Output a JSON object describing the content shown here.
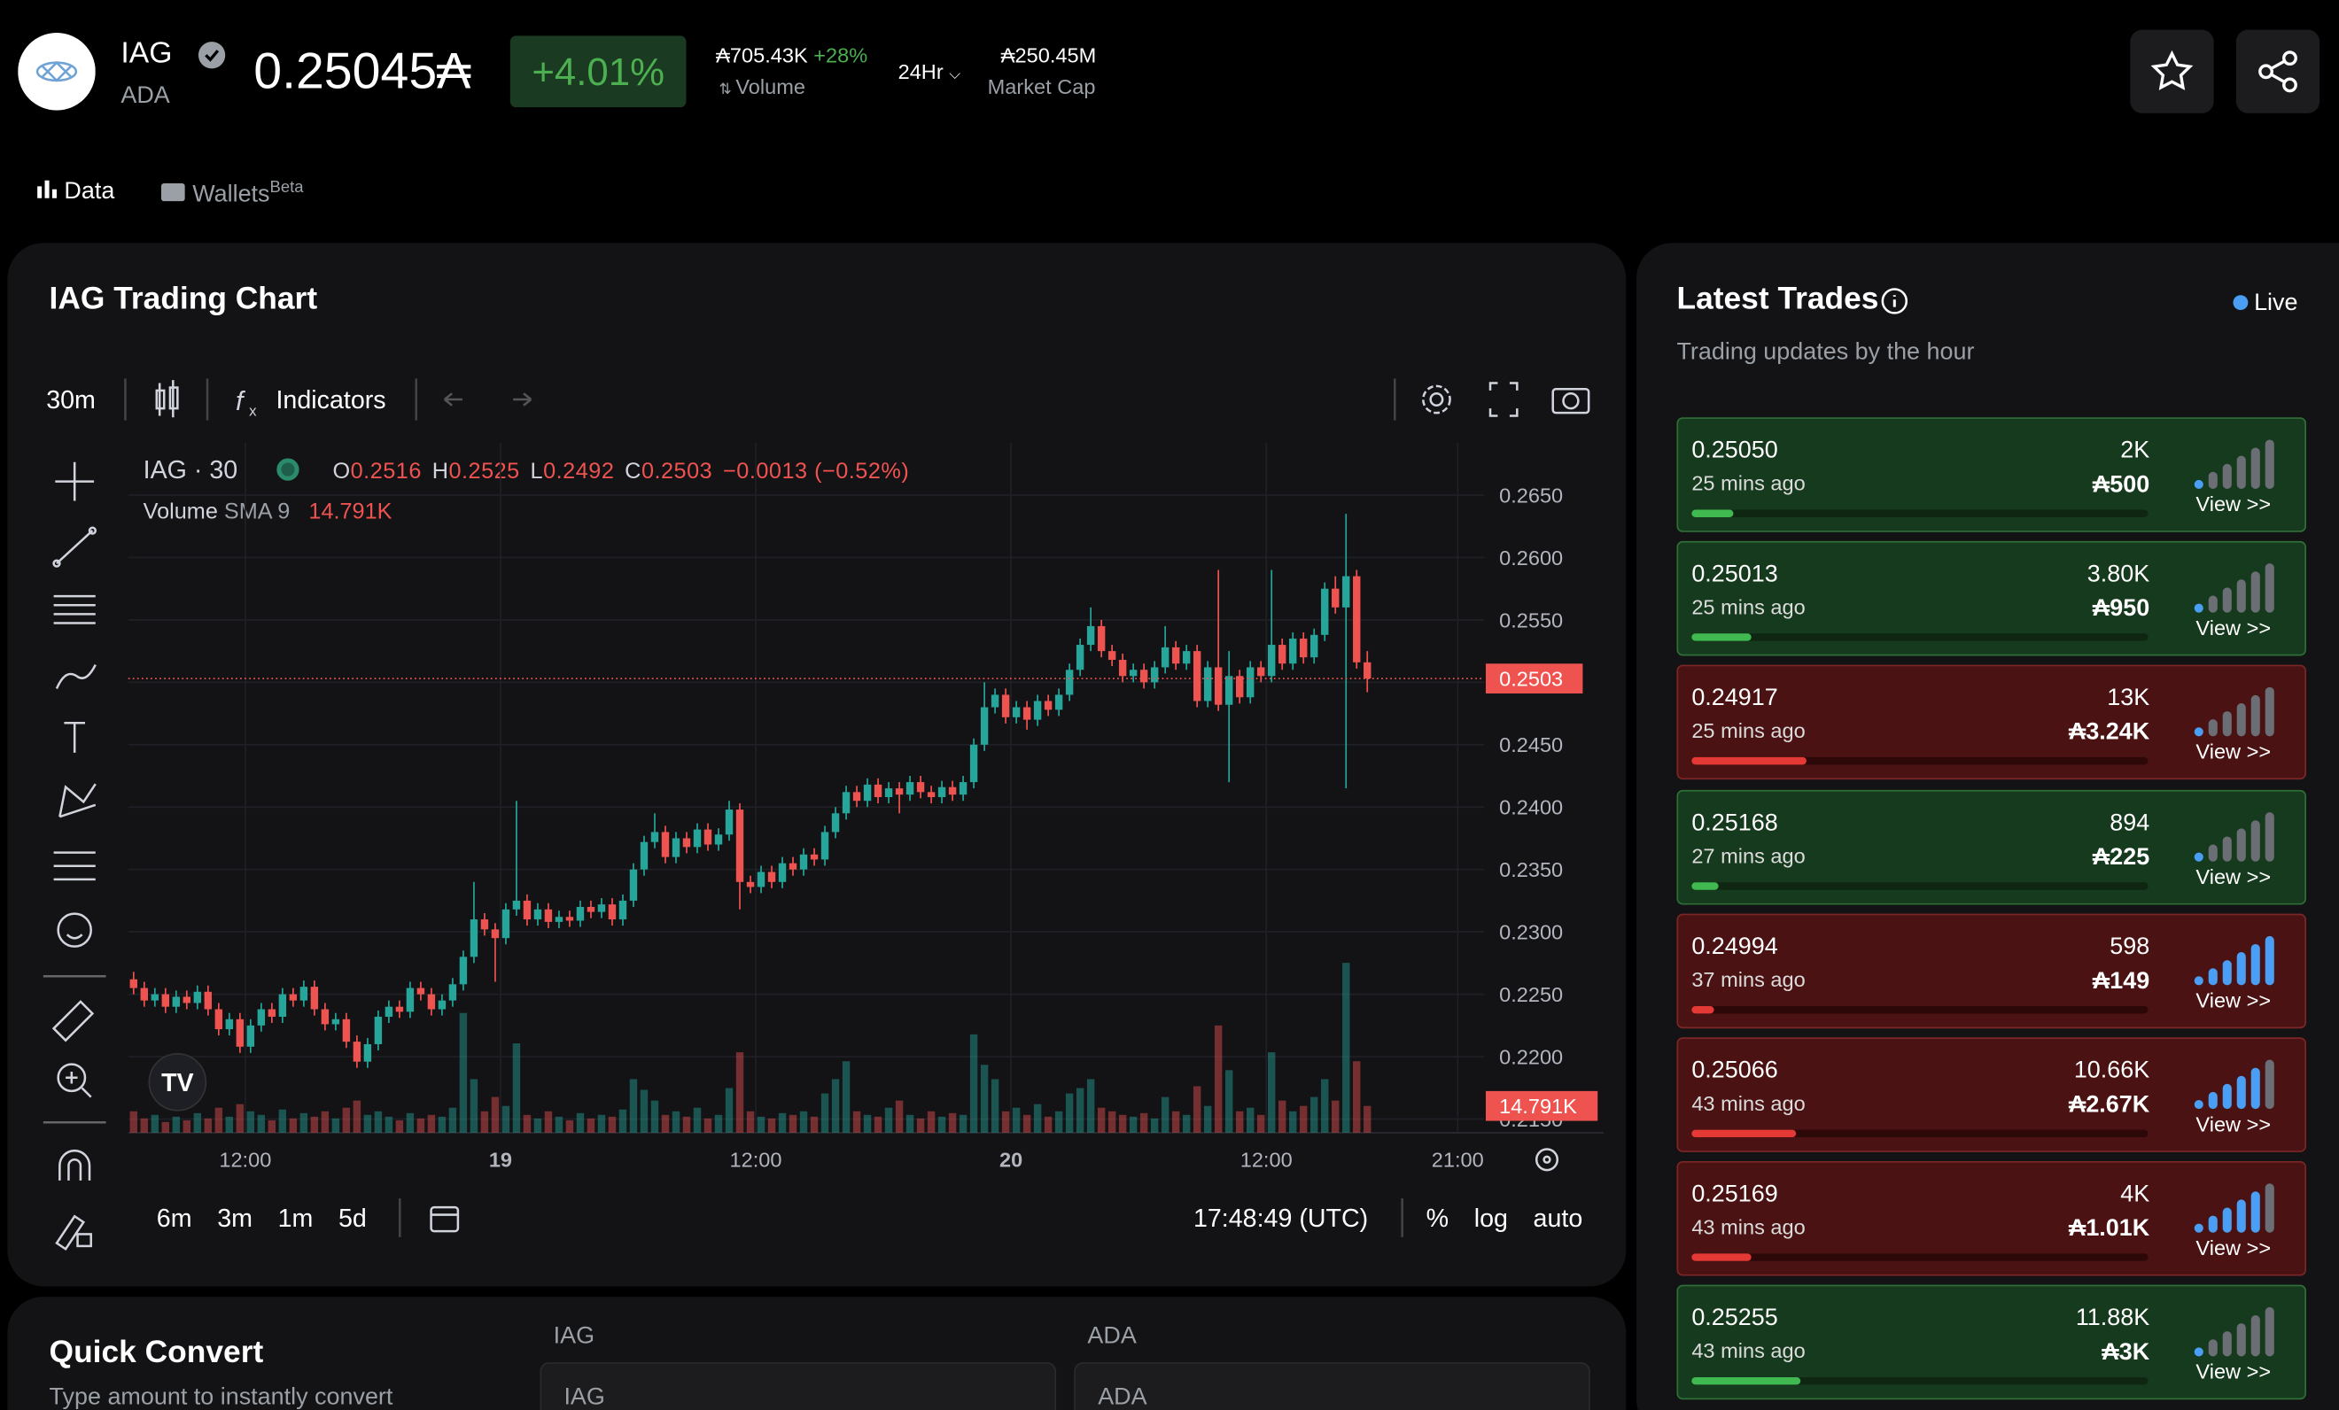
{
  "header": {
    "symbol": "IAG",
    "quote": "ADA",
    "price": "0.25045₳",
    "change": "+4.01%",
    "volume": "₳705.43K",
    "volume_change": "+28%",
    "volume_label": "Volume",
    "period": "24Hr",
    "market_cap": "₳250.45M",
    "market_cap_label": "Market Cap"
  },
  "tabs": {
    "data": "Data",
    "wallets": "Wallets",
    "beta": "Beta"
  },
  "chart_panel": {
    "title": "IAG Trading Chart",
    "interval": "30m",
    "indicators": "Indicators",
    "symbol": "IAG · 30",
    "ohlc_letters": [
      "O",
      "H",
      "L",
      "C"
    ],
    "change": "−0.0013 (−0.52%)",
    "volume_name": "Volume",
    "volume_sma": "SMA 9",
    "volume_sma_value": "14.791K",
    "ranges": [
      "6m",
      "3m",
      "1m",
      "5d"
    ],
    "clock": "17:48:49 (UTC)",
    "options": [
      "%",
      "log",
      "auto"
    ]
  },
  "chart_data": {
    "type": "candlestick",
    "up_color": "#26a69a",
    "down_color": "#ef5350",
    "grid": true,
    "ylim": [
      0.2139,
      0.2692
    ],
    "yticks": [
      {
        "value": 0.215,
        "label": "0.2150"
      },
      {
        "value": 0.22,
        "label": "0.2200"
      },
      {
        "value": 0.225,
        "label": "0.2250"
      },
      {
        "value": 0.23,
        "label": "0.2300"
      },
      {
        "value": 0.235,
        "label": "0.2350"
      },
      {
        "value": 0.24,
        "label": "0.2400"
      },
      {
        "value": 0.245,
        "label": "0.2450"
      },
      {
        "value": 0.25,
        "label": "0.2500"
      },
      {
        "value": 0.255,
        "label": "0.2550"
      },
      {
        "value": 0.26,
        "label": "0.2600"
      },
      {
        "value": 0.265,
        "label": "0.2650"
      }
    ],
    "xlim": [
      0,
      127.5
    ],
    "xticks": [
      {
        "value": 11,
        "label": "12:00"
      },
      {
        "value": 35,
        "label": "19"
      },
      {
        "value": 59,
        "label": "12:00"
      },
      {
        "value": 83,
        "label": "20"
      },
      {
        "value": 107,
        "label": "12:00"
      },
      {
        "value": 125,
        "label": "21:00"
      }
    ],
    "volume_ylim": [
      0,
      100
    ],
    "candles": [
      [
        0.2262,
        0.2268,
        0.225,
        0.2255
      ],
      [
        0.2255,
        0.226,
        0.224,
        0.2245
      ],
      [
        0.2245,
        0.2255,
        0.224,
        0.225
      ],
      [
        0.225,
        0.2255,
        0.2235,
        0.224
      ],
      [
        0.224,
        0.2253,
        0.2235,
        0.2248
      ],
      [
        0.2248,
        0.2253,
        0.2238,
        0.2243
      ],
      [
        0.2243,
        0.2257,
        0.2238,
        0.2252
      ],
      [
        0.2252,
        0.2257,
        0.2233,
        0.2238
      ],
      [
        0.2238,
        0.2243,
        0.2217,
        0.2222
      ],
      [
        0.2222,
        0.2235,
        0.2217,
        0.223
      ],
      [
        0.223,
        0.2235,
        0.2203,
        0.2208
      ],
      [
        0.2208,
        0.223,
        0.2203,
        0.2225
      ],
      [
        0.2225,
        0.2243,
        0.222,
        0.2238
      ],
      [
        0.2238,
        0.2243,
        0.2227,
        0.2232
      ],
      [
        0.2232,
        0.2255,
        0.2227,
        0.225
      ],
      [
        0.225,
        0.2255,
        0.224,
        0.2245
      ],
      [
        0.2245,
        0.2261,
        0.224,
        0.2256
      ],
      [
        0.2256,
        0.2261,
        0.2233,
        0.2238
      ],
      [
        0.2238,
        0.2243,
        0.2221,
        0.2226
      ],
      [
        0.2226,
        0.2235,
        0.2221,
        0.223
      ],
      [
        0.223,
        0.2235,
        0.2207,
        0.2212
      ],
      [
        0.2212,
        0.2217,
        0.2191,
        0.2196
      ],
      [
        0.2196,
        0.2215,
        0.2191,
        0.221
      ],
      [
        0.221,
        0.2237,
        0.2205,
        0.2232
      ],
      [
        0.2232,
        0.2245,
        0.2227,
        0.224
      ],
      [
        0.224,
        0.2245,
        0.2231,
        0.2236
      ],
      [
        0.2236,
        0.226,
        0.2231,
        0.2255
      ],
      [
        0.2255,
        0.226,
        0.2245,
        0.225
      ],
      [
        0.225,
        0.2255,
        0.2233,
        0.2238
      ],
      [
        0.2238,
        0.225,
        0.2233,
        0.2245
      ],
      [
        0.2245,
        0.2263,
        0.224,
        0.2258
      ],
      [
        0.2258,
        0.2285,
        0.2253,
        0.228
      ],
      [
        0.228,
        0.234,
        0.2275,
        0.231
      ],
      [
        0.231,
        0.2315,
        0.2297,
        0.2302
      ],
      [
        0.2302,
        0.2307,
        0.226,
        0.2295
      ],
      [
        0.2295,
        0.2323,
        0.229,
        0.2318
      ],
      [
        0.2318,
        0.2405,
        0.2313,
        0.2325
      ],
      [
        0.2325,
        0.233,
        0.2305,
        0.231
      ],
      [
        0.231,
        0.2323,
        0.2305,
        0.2318
      ],
      [
        0.2318,
        0.2323,
        0.2303,
        0.2308
      ],
      [
        0.2308,
        0.2317,
        0.2303,
        0.2312
      ],
      [
        0.2312,
        0.2317,
        0.2304,
        0.2309
      ],
      [
        0.2309,
        0.2325,
        0.2304,
        0.232
      ],
      [
        0.232,
        0.2325,
        0.2311,
        0.2316
      ],
      [
        0.2316,
        0.2327,
        0.2311,
        0.2322
      ],
      [
        0.2322,
        0.2327,
        0.2305,
        0.231
      ],
      [
        0.231,
        0.233,
        0.2305,
        0.2325
      ],
      [
        0.2325,
        0.2355,
        0.232,
        0.235
      ],
      [
        0.235,
        0.2377,
        0.2345,
        0.2372
      ],
      [
        0.2372,
        0.2395,
        0.2367,
        0.238
      ],
      [
        0.238,
        0.2385,
        0.2355,
        0.236
      ],
      [
        0.236,
        0.238,
        0.2355,
        0.2375
      ],
      [
        0.2375,
        0.238,
        0.2363,
        0.2368
      ],
      [
        0.2368,
        0.2387,
        0.2363,
        0.2382
      ],
      [
        0.2382,
        0.2387,
        0.2365,
        0.237
      ],
      [
        0.237,
        0.2383,
        0.2365,
        0.2378
      ],
      [
        0.2378,
        0.2405,
        0.2373,
        0.2398
      ],
      [
        0.2398,
        0.2403,
        0.2318,
        0.234
      ],
      [
        0.234,
        0.2345,
        0.2331,
        0.2336
      ],
      [
        0.2336,
        0.2353,
        0.2331,
        0.2348
      ],
      [
        0.2348,
        0.2353,
        0.2335,
        0.234
      ],
      [
        0.234,
        0.236,
        0.2335,
        0.2355
      ],
      [
        0.2355,
        0.236,
        0.2345,
        0.235
      ],
      [
        0.235,
        0.2367,
        0.2345,
        0.2362
      ],
      [
        0.2362,
        0.2367,
        0.2353,
        0.2358
      ],
      [
        0.2358,
        0.2385,
        0.2353,
        0.238
      ],
      [
        0.238,
        0.24,
        0.2375,
        0.2395
      ],
      [
        0.2395,
        0.2417,
        0.239,
        0.2412
      ],
      [
        0.2412,
        0.2417,
        0.24,
        0.2405
      ],
      [
        0.2405,
        0.2423,
        0.24,
        0.2418
      ],
      [
        0.2418,
        0.2423,
        0.2403,
        0.2408
      ],
      [
        0.2408,
        0.242,
        0.2403,
        0.2415
      ],
      [
        0.2415,
        0.242,
        0.2395,
        0.241
      ],
      [
        0.241,
        0.2425,
        0.2405,
        0.242
      ],
      [
        0.242,
        0.2425,
        0.2407,
        0.2412
      ],
      [
        0.2412,
        0.2417,
        0.2403,
        0.2408
      ],
      [
        0.2408,
        0.2421,
        0.2403,
        0.2416
      ],
      [
        0.2416,
        0.2421,
        0.2405,
        0.241
      ],
      [
        0.241,
        0.2425,
        0.2405,
        0.242
      ],
      [
        0.242,
        0.2455,
        0.2415,
        0.245
      ],
      [
        0.245,
        0.25,
        0.2445,
        0.248
      ],
      [
        0.248,
        0.2495,
        0.2475,
        0.249
      ],
      [
        0.249,
        0.2495,
        0.2467,
        0.2472
      ],
      [
        0.2472,
        0.2485,
        0.2467,
        0.248
      ],
      [
        0.248,
        0.2485,
        0.2462,
        0.247
      ],
      [
        0.247,
        0.249,
        0.2465,
        0.2485
      ],
      [
        0.2485,
        0.249,
        0.2473,
        0.2478
      ],
      [
        0.2478,
        0.2495,
        0.2473,
        0.249
      ],
      [
        0.249,
        0.2515,
        0.2485,
        0.251
      ],
      [
        0.251,
        0.2535,
        0.2505,
        0.253
      ],
      [
        0.253,
        0.256,
        0.2525,
        0.2545
      ],
      [
        0.2545,
        0.255,
        0.252,
        0.2525
      ],
      [
        0.2525,
        0.253,
        0.2513,
        0.2518
      ],
      [
        0.2518,
        0.2523,
        0.25,
        0.2505
      ],
      [
        0.2505,
        0.2515,
        0.25,
        0.251
      ],
      [
        0.251,
        0.2515,
        0.2495,
        0.25
      ],
      [
        0.25,
        0.2517,
        0.2495,
        0.2512
      ],
      [
        0.2512,
        0.2545,
        0.2507,
        0.2528
      ],
      [
        0.2528,
        0.2533,
        0.251,
        0.2515
      ],
      [
        0.2515,
        0.253,
        0.251,
        0.2525
      ],
      [
        0.2525,
        0.253,
        0.248,
        0.2485
      ],
      [
        0.2485,
        0.2517,
        0.248,
        0.2512
      ],
      [
        0.2512,
        0.259,
        0.2477,
        0.2482
      ],
      [
        0.2482,
        0.2525,
        0.242,
        0.2505
      ],
      [
        0.2505,
        0.251,
        0.2483,
        0.2488
      ],
      [
        0.2488,
        0.2517,
        0.2483,
        0.2512
      ],
      [
        0.2512,
        0.2517,
        0.25,
        0.2505
      ],
      [
        0.2505,
        0.259,
        0.25,
        0.253
      ],
      [
        0.253,
        0.2535,
        0.251,
        0.2515
      ],
      [
        0.2515,
        0.254,
        0.251,
        0.2535
      ],
      [
        0.2535,
        0.254,
        0.2515,
        0.252
      ],
      [
        0.252,
        0.2543,
        0.2515,
        0.2538
      ],
      [
        0.2538,
        0.258,
        0.2533,
        0.2575
      ],
      [
        0.2575,
        0.2585,
        0.2555,
        0.256
      ],
      [
        0.256,
        0.2635,
        0.2415,
        0.2585
      ],
      [
        0.2585,
        0.259,
        0.2511,
        0.2516
      ],
      [
        0.2516,
        0.2525,
        0.2492,
        0.2503
      ]
    ],
    "volumes": [
      12,
      8,
      10,
      6,
      9,
      7,
      11,
      8,
      14,
      9,
      16,
      12,
      10,
      7,
      13,
      8,
      11,
      9,
      12,
      8,
      14,
      18,
      10,
      12,
      9,
      7,
      11,
      8,
      10,
      9,
      14,
      67,
      30,
      12,
      20,
      15,
      50,
      10,
      8,
      12,
      9,
      7,
      11,
      8,
      10,
      9,
      13,
      30,
      24,
      18,
      10,
      12,
      9,
      14,
      8,
      10,
      25,
      45,
      12,
      9,
      8,
      11,
      10,
      12,
      9,
      22,
      30,
      40,
      12,
      10,
      9,
      14,
      18,
      10,
      8,
      12,
      9,
      11,
      10,
      55,
      38,
      30,
      12,
      14,
      10,
      16,
      9,
      12,
      22,
      25,
      30,
      14,
      12,
      10,
      9,
      11,
      8,
      20,
      12,
      10,
      26,
      15,
      60,
      35,
      12,
      14,
      10,
      45,
      18,
      12,
      15,
      20,
      30,
      18,
      95,
      40,
      15
    ]
  },
  "trades": {
    "title": "Latest Trades",
    "live": "Live",
    "subtitle": "Trading updates by the hour",
    "view": "View >>",
    "items": [
      {
        "price": "0.25050",
        "time": "25 mins ago",
        "amount": "2K",
        "ada": "₳500",
        "side": "buy",
        "progress": 9,
        "signal": 1
      },
      {
        "price": "0.25013",
        "time": "25 mins ago",
        "amount": "3.80K",
        "ada": "₳950",
        "side": "buy",
        "progress": 13,
        "signal": 1
      },
      {
        "price": "0.24917",
        "time": "25 mins ago",
        "amount": "13K",
        "ada": "₳3.24K",
        "side": "sell",
        "progress": 25,
        "signal": 1
      },
      {
        "price": "0.25168",
        "time": "27 mins ago",
        "amount": "894",
        "ada": "₳225",
        "side": "buy",
        "progress": 6,
        "signal": 1
      },
      {
        "price": "0.24994",
        "time": "37 mins ago",
        "amount": "598",
        "ada": "₳149",
        "side": "sell",
        "progress": 5,
        "signal": 6
      },
      {
        "price": "0.25066",
        "time": "43 mins ago",
        "amount": "10.66K",
        "ada": "₳2.67K",
        "side": "sell",
        "progress": 23,
        "signal": 5
      },
      {
        "price": "0.25169",
        "time": "43 mins ago",
        "amount": "4K",
        "ada": "₳1.01K",
        "side": "sell",
        "progress": 13,
        "signal": 5
      },
      {
        "price": "0.25255",
        "time": "43 mins ago",
        "amount": "11.88K",
        "ada": "₳3K",
        "side": "buy",
        "progress": 24,
        "signal": 1
      }
    ]
  },
  "convert": {
    "title": "Quick Convert",
    "subtitle": "Type amount to instantly convert",
    "from_label": "IAG",
    "to_label": "ADA",
    "from_placeholder": "IAG",
    "to_placeholder": "ADA"
  }
}
